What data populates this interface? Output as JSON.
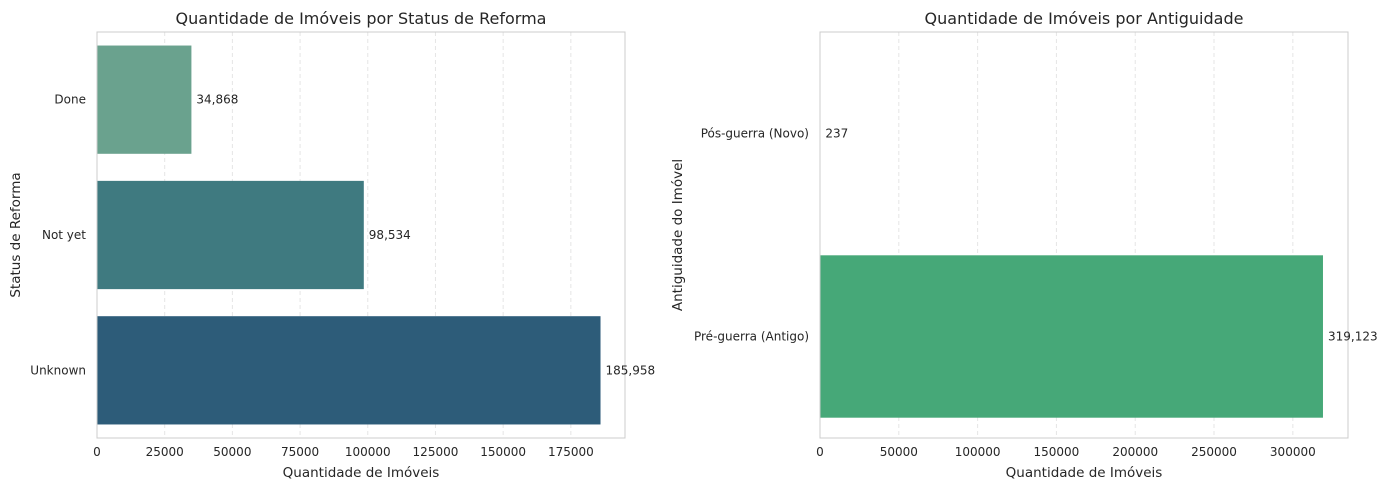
{
  "chart_data": [
    {
      "type": "bar",
      "orientation": "horizontal",
      "title": "Quantidade de Imóveis por Status de Reforma",
      "xlabel": "Quantidade de Imóveis",
      "ylabel": "Status de Reforma",
      "categories": [
        "Done",
        "Not yet",
        "Unknown"
      ],
      "values": [
        34868,
        98534,
        185958
      ],
      "value_labels": [
        "34,868",
        "98,534",
        "185,958"
      ],
      "colors": [
        "#6aa28e",
        "#3f7a80",
        "#2d5c79"
      ],
      "xlim": [
        0,
        195000
      ],
      "xticks": [
        0,
        25000,
        50000,
        75000,
        100000,
        125000,
        150000,
        175000
      ],
      "xtick_labels": [
        "0",
        "25000",
        "50000",
        "75000",
        "100000",
        "125000",
        "150000",
        "175000"
      ],
      "grid": "x-dashed"
    },
    {
      "type": "bar",
      "orientation": "horizontal",
      "title": "Quantidade de Imóveis por Antiguidade",
      "xlabel": "Quantidade de Imóveis",
      "ylabel": "Antiguidade do Imóvel",
      "categories": [
        "Pós-guerra (Novo)",
        "Pré-guerra (Antigo)"
      ],
      "values": [
        237,
        319123
      ],
      "value_labels": [
        "237",
        "319,123"
      ],
      "colors": [
        "#46a878",
        "#46a878"
      ],
      "xlim": [
        0,
        335000
      ],
      "xticks": [
        0,
        50000,
        100000,
        150000,
        200000,
        250000,
        300000
      ],
      "xtick_labels": [
        "0",
        "50000",
        "100000",
        "150000",
        "200000",
        "250000",
        "300000"
      ],
      "grid": "x-dashed"
    }
  ]
}
